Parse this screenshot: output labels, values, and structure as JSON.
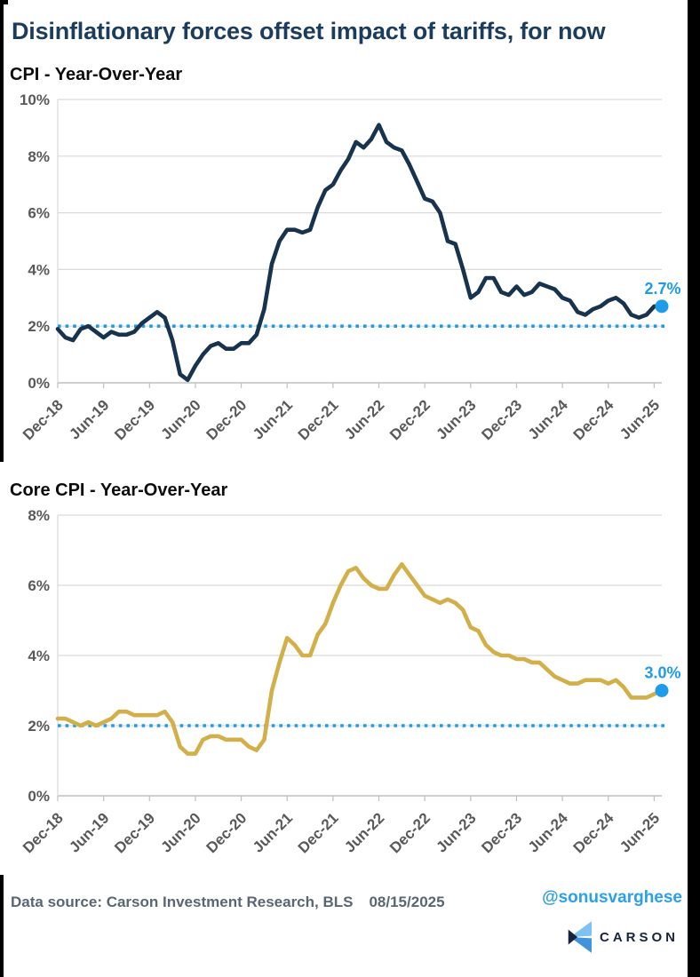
{
  "page": {
    "title": "Disinflationary forces offset impact of tariffs, for now",
    "footer": {
      "data_source": "Data source: Carson Investment Research, BLS",
      "date": "08/15/2025",
      "handle": "@sonusvarghese",
      "logo_text": "CARSON"
    }
  },
  "colors": {
    "title_navy": "#1b3c5c",
    "cpi_line": "#17334d",
    "core_cpi_line": "#d2af49",
    "accent_blue": "#1e9ce9",
    "axis_text": "#595959",
    "gridline": "#d9d9d9",
    "axis_line": "#bfbfbf",
    "footer_text": "#5a6673",
    "border": "#000000"
  },
  "chart_data": [
    {
      "type": "line",
      "title": "CPI - Year-Over-Year",
      "x_start": "Dec-18",
      "x_end": "Jul-25",
      "x_tick_labels": [
        "Dec-18",
        "Jun-19",
        "Dec-19",
        "Jun-20",
        "Dec-20",
        "Jun-21",
        "Dec-21",
        "Jun-22",
        "Dec-22",
        "Jun-23",
        "Dec-23",
        "Jun-24",
        "Dec-24",
        "Jun-25"
      ],
      "x_tick_month_indexes": [
        0,
        6,
        12,
        18,
        24,
        30,
        36,
        42,
        48,
        54,
        60,
        66,
        72,
        78
      ],
      "y_tick_labels": [
        "0%",
        "2%",
        "4%",
        "6%",
        "8%",
        "10%"
      ],
      "y_tick_values": [
        0,
        2,
        4,
        6,
        8,
        10
      ],
      "ylim": [
        0,
        10
      ],
      "grid": true,
      "reference_line": {
        "value": 2,
        "style": "dotted",
        "color": "#1e9ce9"
      },
      "end_label": "2.7%",
      "end_marker_color": "#1e9ce9",
      "series": [
        {
          "name": "CPI Year-Over-Year",
          "color": "#17334d",
          "values": [
            1.9,
            1.6,
            1.5,
            1.9,
            2.0,
            1.8,
            1.6,
            1.8,
            1.7,
            1.7,
            1.8,
            2.1,
            2.3,
            2.5,
            2.3,
            1.5,
            0.3,
            0.1,
            0.6,
            1.0,
            1.3,
            1.4,
            1.2,
            1.2,
            1.4,
            1.4,
            1.7,
            2.6,
            4.2,
            5.0,
            5.4,
            5.4,
            5.3,
            5.4,
            6.2,
            6.8,
            7.0,
            7.5,
            7.9,
            8.5,
            8.3,
            8.6,
            9.1,
            8.5,
            8.3,
            8.2,
            7.7,
            7.1,
            6.5,
            6.4,
            6.0,
            5.0,
            4.9,
            4.0,
            3.0,
            3.2,
            3.7,
            3.7,
            3.2,
            3.1,
            3.4,
            3.1,
            3.2,
            3.5,
            3.4,
            3.3,
            3.0,
            2.9,
            2.5,
            2.4,
            2.6,
            2.7,
            2.9,
            3.0,
            2.8,
            2.4,
            2.3,
            2.4,
            2.7,
            2.7
          ]
        }
      ]
    },
    {
      "type": "line",
      "title": "Core CPI - Year-Over-Year",
      "x_start": "Dec-18",
      "x_end": "Jul-25",
      "x_tick_labels": [
        "Dec-18",
        "Jun-19",
        "Dec-19",
        "Jun-20",
        "Dec-20",
        "Jun-21",
        "Dec-21",
        "Jun-22",
        "Dec-22",
        "Jun-23",
        "Dec-23",
        "Jun-24",
        "Dec-24",
        "Jun-25"
      ],
      "x_tick_month_indexes": [
        0,
        6,
        12,
        18,
        24,
        30,
        36,
        42,
        48,
        54,
        60,
        66,
        72,
        78
      ],
      "y_tick_labels": [
        "0%",
        "2%",
        "4%",
        "6%",
        "8%"
      ],
      "y_tick_values": [
        0,
        2,
        4,
        6,
        8
      ],
      "ylim": [
        0,
        8
      ],
      "grid": true,
      "reference_line": {
        "value": 2,
        "style": "dotted",
        "color": "#1e9ce9"
      },
      "end_label": "3.0%",
      "end_marker_color": "#1e9ce9",
      "series": [
        {
          "name": "Core CPI Year-Over-Year",
          "color": "#d2af49",
          "values": [
            2.2,
            2.2,
            2.1,
            2.0,
            2.1,
            2.0,
            2.1,
            2.2,
            2.4,
            2.4,
            2.3,
            2.3,
            2.3,
            2.3,
            2.4,
            2.1,
            1.4,
            1.2,
            1.2,
            1.6,
            1.7,
            1.7,
            1.6,
            1.6,
            1.6,
            1.4,
            1.3,
            1.6,
            3.0,
            3.8,
            4.5,
            4.3,
            4.0,
            4.0,
            4.6,
            4.9,
            5.5,
            6.0,
            6.4,
            6.5,
            6.2,
            6.0,
            5.9,
            5.9,
            6.3,
            6.6,
            6.3,
            6.0,
            5.7,
            5.6,
            5.5,
            5.6,
            5.5,
            5.3,
            4.8,
            4.7,
            4.3,
            4.1,
            4.0,
            4.0,
            3.9,
            3.9,
            3.8,
            3.8,
            3.6,
            3.4,
            3.3,
            3.2,
            3.2,
            3.3,
            3.3,
            3.3,
            3.2,
            3.3,
            3.1,
            2.8,
            2.8,
            2.8,
            2.9,
            3.0
          ]
        }
      ]
    }
  ]
}
